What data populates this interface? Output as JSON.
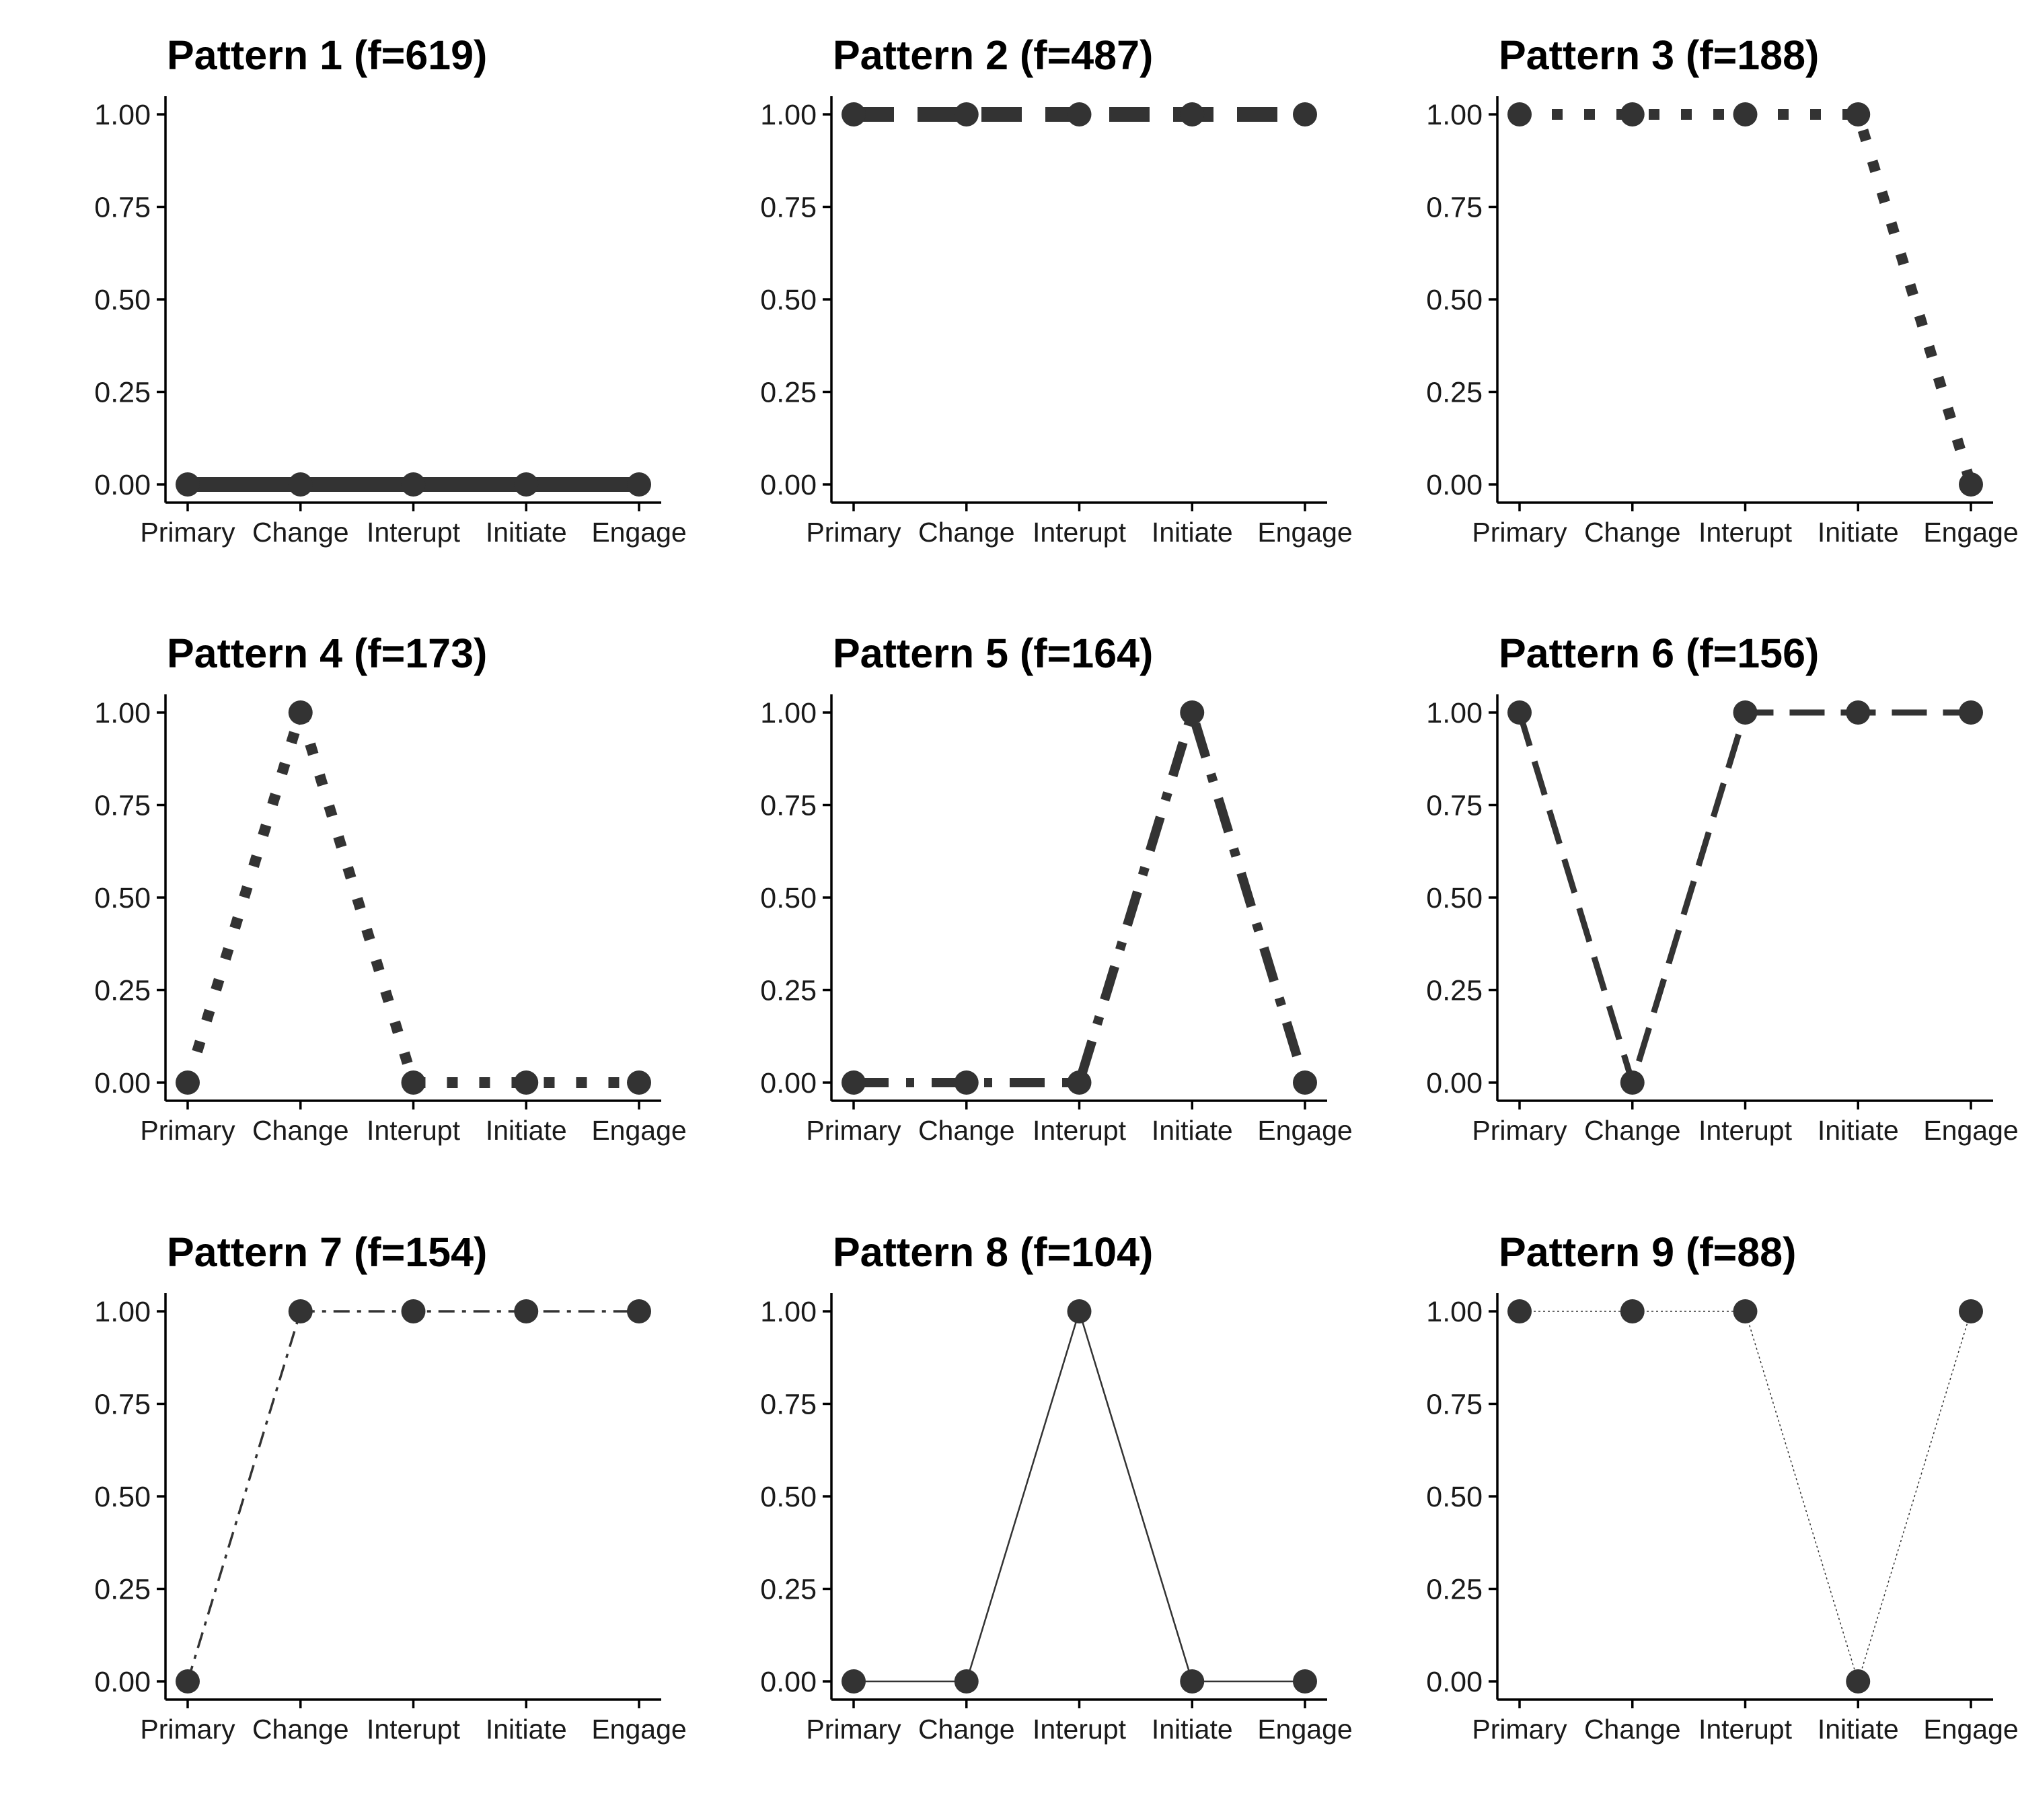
{
  "colors": {
    "ink": "#333333",
    "axis": "#000000",
    "background": "#ffffff"
  },
  "chart_data": [
    {
      "type": "line",
      "title": "Pattern 1 (f=619)",
      "xlabel": "",
      "ylabel": "",
      "categories": [
        "Primary",
        "Change",
        "Interupt",
        "Initiate",
        "Engage"
      ],
      "values": [
        0,
        0,
        0,
        0,
        0
      ],
      "ylim": [
        0,
        1
      ],
      "yticks": [
        "0.00",
        "0.25",
        "0.50",
        "0.75",
        "1.00"
      ],
      "line_style": "solid-thick",
      "grid": false,
      "legend": "none"
    },
    {
      "type": "line",
      "title": "Pattern 2 (f=487)",
      "xlabel": "",
      "ylabel": "",
      "categories": [
        "Primary",
        "Change",
        "Interupt",
        "Initiate",
        "Engage"
      ],
      "values": [
        1,
        1,
        1,
        1,
        1
      ],
      "ylim": [
        0,
        1
      ],
      "yticks": [
        "0.00",
        "0.25",
        "0.50",
        "0.75",
        "1.00"
      ],
      "line_style": "dashed-thick",
      "grid": false,
      "legend": "none"
    },
    {
      "type": "line",
      "title": "Pattern 3 (f=188)",
      "xlabel": "",
      "ylabel": "",
      "categories": [
        "Primary",
        "Change",
        "Interupt",
        "Initiate",
        "Engage"
      ],
      "values": [
        1,
        1,
        1,
        1,
        0
      ],
      "ylim": [
        0,
        1
      ],
      "yticks": [
        "0.00",
        "0.25",
        "0.50",
        "0.75",
        "1.00"
      ],
      "line_style": "dotted-thick",
      "grid": false,
      "legend": "none"
    },
    {
      "type": "line",
      "title": "Pattern 4 (f=173)",
      "xlabel": "",
      "ylabel": "",
      "categories": [
        "Primary",
        "Change",
        "Interupt",
        "Initiate",
        "Engage"
      ],
      "values": [
        0,
        1,
        0,
        0,
        0
      ],
      "ylim": [
        0,
        1
      ],
      "yticks": [
        "0.00",
        "0.25",
        "0.50",
        "0.75",
        "1.00"
      ],
      "line_style": "dotted-thick",
      "grid": false,
      "legend": "none"
    },
    {
      "type": "line",
      "title": "Pattern 5 (f=164)",
      "xlabel": "",
      "ylabel": "",
      "categories": [
        "Primary",
        "Change",
        "Interupt",
        "Initiate",
        "Engage"
      ],
      "values": [
        0,
        0,
        0,
        1,
        0
      ],
      "ylim": [
        0,
        1
      ],
      "yticks": [
        "0.00",
        "0.25",
        "0.50",
        "0.75",
        "1.00"
      ],
      "line_style": "dashdot-thick",
      "grid": false,
      "legend": "none"
    },
    {
      "type": "line",
      "title": "Pattern 6 (f=156)",
      "xlabel": "",
      "ylabel": "",
      "categories": [
        "Primary",
        "Change",
        "Interupt",
        "Initiate",
        "Engage"
      ],
      "values": [
        1,
        0,
        1,
        1,
        1
      ],
      "ylim": [
        0,
        1
      ],
      "yticks": [
        "0.00",
        "0.25",
        "0.50",
        "0.75",
        "1.00"
      ],
      "line_style": "longdash-medium",
      "grid": false,
      "legend": "none"
    },
    {
      "type": "line",
      "title": "Pattern 7 (f=154)",
      "xlabel": "",
      "ylabel": "",
      "categories": [
        "Primary",
        "Change",
        "Interupt",
        "Initiate",
        "Engage"
      ],
      "values": [
        0,
        1,
        1,
        1,
        1
      ],
      "ylim": [
        0,
        1
      ],
      "yticks": [
        "0.00",
        "0.25",
        "0.50",
        "0.75",
        "1.00"
      ],
      "line_style": "dashdot-thin",
      "grid": false,
      "legend": "none"
    },
    {
      "type": "line",
      "title": "Pattern 8 (f=104)",
      "xlabel": "",
      "ylabel": "",
      "categories": [
        "Primary",
        "Change",
        "Interupt",
        "Initiate",
        "Engage"
      ],
      "values": [
        0,
        0,
        1,
        0,
        0
      ],
      "ylim": [
        0,
        1
      ],
      "yticks": [
        "0.00",
        "0.25",
        "0.50",
        "0.75",
        "1.00"
      ],
      "line_style": "solid-thin",
      "grid": false,
      "legend": "none"
    },
    {
      "type": "line",
      "title": "Pattern 9 (f=88)",
      "xlabel": "",
      "ylabel": "",
      "categories": [
        "Primary",
        "Change",
        "Interupt",
        "Initiate",
        "Engage"
      ],
      "values": [
        1,
        1,
        1,
        0,
        1
      ],
      "ylim": [
        0,
        1
      ],
      "yticks": [
        "0.00",
        "0.25",
        "0.50",
        "0.75",
        "1.00"
      ],
      "line_style": "dotted-hairline",
      "grid": false,
      "legend": "none"
    }
  ]
}
